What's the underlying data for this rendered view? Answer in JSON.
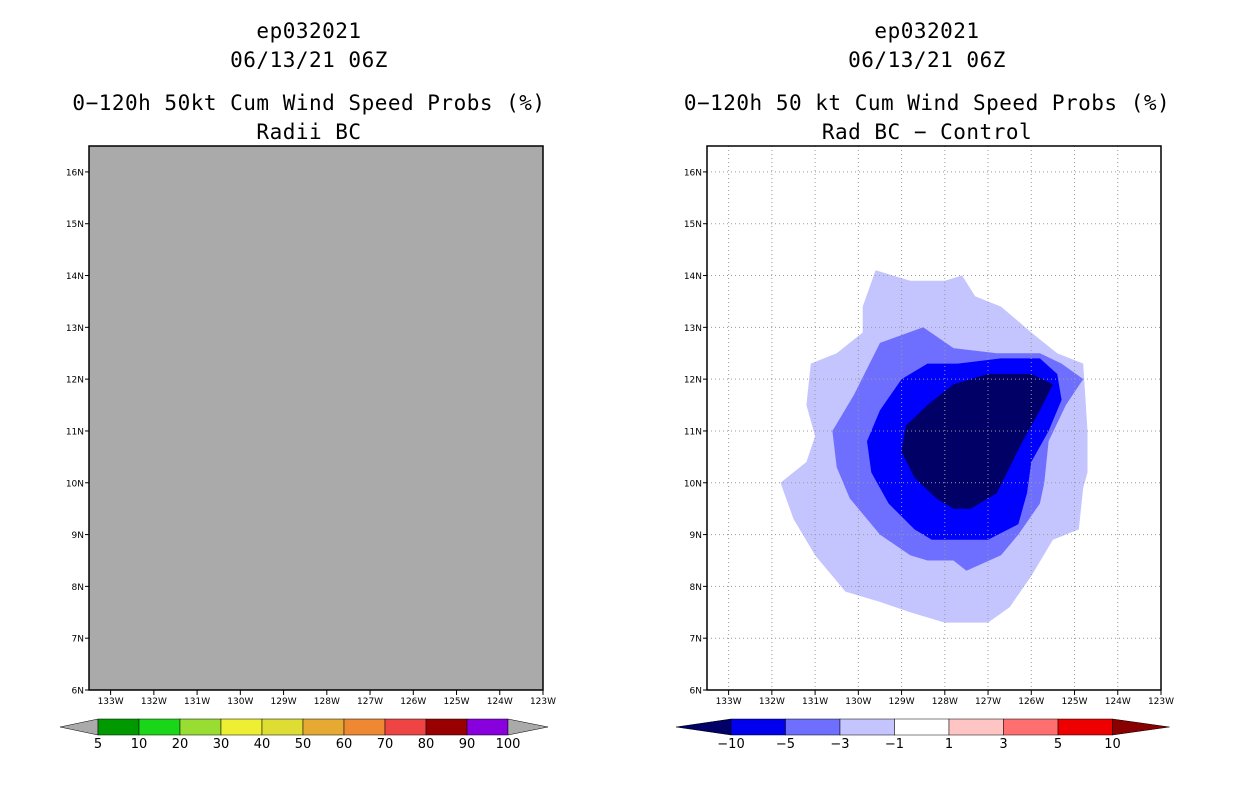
{
  "chart_data": [
    {
      "type": "heatmap",
      "storm_id": "ep032021",
      "datetime": "06/13/21 06Z",
      "title": "0−120h 50kt Cum Wind Speed Probs (%)",
      "subtitle": "Radii BC",
      "xlabel": "",
      "ylabel": "",
      "x_ticks": [
        "133W",
        "132W",
        "131W",
        "130W",
        "129W",
        "128W",
        "127W",
        "126W",
        "125W",
        "124W",
        "123W"
      ],
      "y_ticks": [
        "6N",
        "7N",
        "8N",
        "9N",
        "10N",
        "11N",
        "12N",
        "13N",
        "14N",
        "15N",
        "16N"
      ],
      "xlim": [
        -133.5,
        -123
      ],
      "ylim": [
        6,
        16.5
      ],
      "grid": false,
      "field_note": "entire domain undefined (shown gray)",
      "colorbar": {
        "labels": [
          "5",
          "10",
          "20",
          "30",
          "40",
          "50",
          "60",
          "70",
          "80",
          "90",
          "100"
        ],
        "colors": [
          "#009900",
          "#19d619",
          "#99dd33",
          "#eeee33",
          "#dddd33",
          "#e6aa33",
          "#ee8833",
          "#ee4444",
          "#990000",
          "#8800dd"
        ],
        "end_color": "#aaaaaa"
      }
    },
    {
      "type": "heatmap",
      "storm_id": "ep032021",
      "datetime": "06/13/21 06Z",
      "title": "0−120h 50 kt Cum Wind Speed Probs (%)",
      "subtitle": "Rad BC − Control",
      "xlabel": "",
      "ylabel": "",
      "x_ticks": [
        "133W",
        "132W",
        "131W",
        "130W",
        "129W",
        "128W",
        "127W",
        "126W",
        "125W",
        "124W",
        "123W"
      ],
      "y_ticks": [
        "6N",
        "7N",
        "8N",
        "9N",
        "10N",
        "11N",
        "12N",
        "13N",
        "14N",
        "15N",
        "16N"
      ],
      "xlim": [
        -133.5,
        -123
      ],
      "ylim": [
        6,
        16.5
      ],
      "grid": true,
      "contours": [
        {
          "level": "-1 to -3",
          "color": "#c4c4ff",
          "points": [
            [
              -129.6,
              14.1
            ],
            [
              -128.8,
              13.9
            ],
            [
              -128.0,
              13.9
            ],
            [
              -127.6,
              14.0
            ],
            [
              -127.3,
              13.6
            ],
            [
              -126.7,
              13.4
            ],
            [
              -126.0,
              12.9
            ],
            [
              -125.4,
              12.5
            ],
            [
              -124.8,
              12.3
            ],
            [
              -124.7,
              11.0
            ],
            [
              -124.7,
              10.2
            ],
            [
              -124.8,
              9.9
            ],
            [
              -124.9,
              9.1
            ],
            [
              -125.5,
              8.9
            ],
            [
              -126.0,
              8.2
            ],
            [
              -126.5,
              7.6
            ],
            [
              -127.0,
              7.3
            ],
            [
              -128.0,
              7.3
            ],
            [
              -128.8,
              7.5
            ],
            [
              -129.5,
              7.7
            ],
            [
              -130.3,
              7.9
            ],
            [
              -131.0,
              8.6
            ],
            [
              -131.5,
              9.3
            ],
            [
              -131.8,
              10.0
            ],
            [
              -131.2,
              10.4
            ],
            [
              -131.0,
              10.9
            ],
            [
              -131.2,
              11.5
            ],
            [
              -131.1,
              12.3
            ],
            [
              -130.5,
              12.5
            ],
            [
              -129.9,
              12.9
            ],
            [
              -129.9,
              13.4
            ]
          ]
        },
        {
          "level": "-3 to -5",
          "color": "#6f6fff",
          "points": [
            [
              -129.5,
              12.7
            ],
            [
              -128.5,
              13.0
            ],
            [
              -127.8,
              12.6
            ],
            [
              -126.8,
              12.5
            ],
            [
              -125.8,
              12.5
            ],
            [
              -125.3,
              12.3
            ],
            [
              -124.8,
              12.0
            ],
            [
              -125.2,
              11.5
            ],
            [
              -125.6,
              10.8
            ],
            [
              -125.7,
              10.0
            ],
            [
              -125.8,
              9.6
            ],
            [
              -126.3,
              9.0
            ],
            [
              -126.7,
              8.6
            ],
            [
              -127.5,
              8.3
            ],
            [
              -127.8,
              8.5
            ],
            [
              -128.4,
              8.5
            ],
            [
              -128.8,
              8.6
            ],
            [
              -129.5,
              9.0
            ],
            [
              -130.2,
              9.7
            ],
            [
              -130.5,
              10.3
            ],
            [
              -130.6,
              11.0
            ],
            [
              -130.1,
              11.7
            ]
          ]
        },
        {
          "level": "-5 to -10",
          "color": "#0000ff",
          "points": [
            [
              -129.0,
              12.0
            ],
            [
              -128.4,
              12.3
            ],
            [
              -127.7,
              12.3
            ],
            [
              -126.7,
              12.4
            ],
            [
              -125.8,
              12.4
            ],
            [
              -125.4,
              12.1
            ],
            [
              -125.3,
              11.6
            ],
            [
              -125.6,
              11.0
            ],
            [
              -126.0,
              10.4
            ],
            [
              -126.1,
              9.8
            ],
            [
              -126.3,
              9.2
            ],
            [
              -127.0,
              8.9
            ],
            [
              -127.5,
              8.9
            ],
            [
              -128.3,
              8.9
            ],
            [
              -128.7,
              9.1
            ],
            [
              -129.3,
              9.6
            ],
            [
              -129.7,
              10.2
            ],
            [
              -129.8,
              10.8
            ],
            [
              -129.5,
              11.4
            ]
          ]
        },
        {
          "level": "< -10",
          "color": "#000066",
          "points": [
            [
              -128.4,
              11.5
            ],
            [
              -127.8,
              11.9
            ],
            [
              -127.0,
              12.1
            ],
            [
              -126.0,
              12.1
            ],
            [
              -125.5,
              11.9
            ],
            [
              -125.8,
              11.4
            ],
            [
              -126.2,
              10.8
            ],
            [
              -126.5,
              10.3
            ],
            [
              -126.8,
              9.8
            ],
            [
              -127.4,
              9.5
            ],
            [
              -127.8,
              9.5
            ],
            [
              -128.2,
              9.7
            ],
            [
              -128.7,
              10.1
            ],
            [
              -129.0,
              10.6
            ],
            [
              -128.9,
              11.1
            ]
          ]
        }
      ],
      "colorbar": {
        "labels": [
          "−10",
          "−5",
          "−3",
          "−1",
          "1",
          "3",
          "5",
          "10"
        ],
        "colors": [
          "#000066",
          "#0000ee",
          "#6f6fff",
          "#c4c4ff",
          "#ffffff",
          "#ffc4c4",
          "#ff6f6f",
          "#ee0000",
          "#880000"
        ],
        "end_colors": [
          "#000066",
          "#880000"
        ]
      }
    }
  ]
}
